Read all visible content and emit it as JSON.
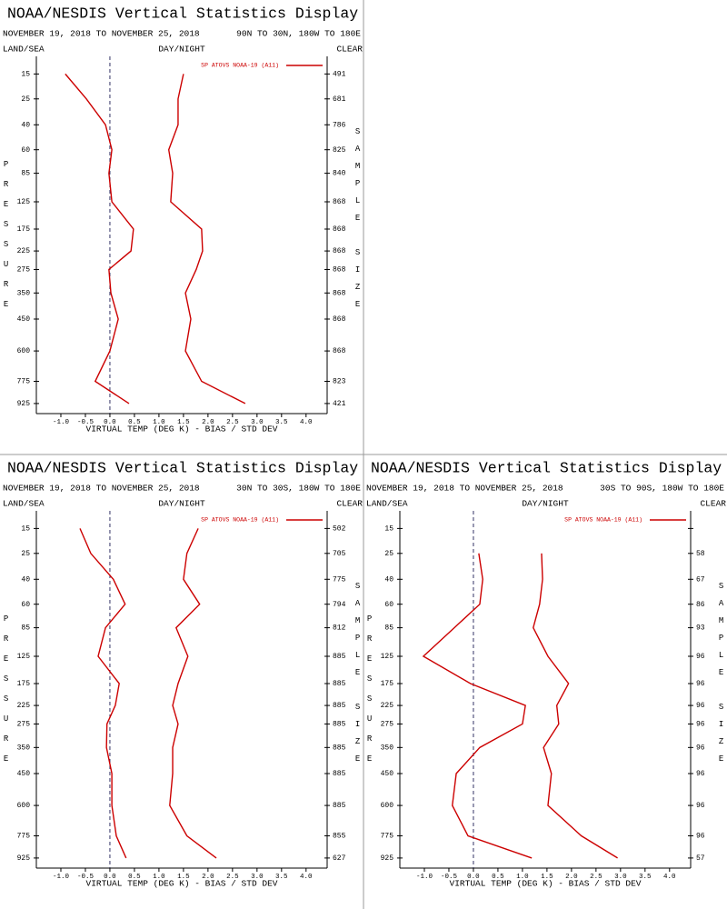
{
  "chart_data": [
    {
      "type": "line",
      "title": "NOAA/NESDIS Vertical Statistics Display",
      "subtitle": "NOVEMBER 19, 2018 TO NOVEMBER 25, 2018",
      "region": "90N TO 30N, 180W TO 180E",
      "land_sea": "LAND/SEA",
      "day_night": "DAY/NIGHT",
      "clear": "CLEAR",
      "y_label": "PRESSURE",
      "y2_label": "SAMPLE SIZE",
      "x_label": "VIRTUAL TEMP (DEG K) - BIAS / STD DEV",
      "xlim": [
        -1.5,
        4.43
      ],
      "xticks": [
        {
          "value": -1.0,
          "label": "-1.0"
        },
        {
          "value": -0.5,
          "label": "-0.5"
        },
        {
          "value": 0,
          "label": "0.0"
        },
        {
          "value": 0.5,
          "label": "0.5"
        },
        {
          "value": 1.0,
          "label": "1.0"
        },
        {
          "value": 1.5,
          "label": "1.5"
        },
        {
          "value": 2.0,
          "label": "2.0"
        },
        {
          "value": 2.5,
          "label": "2.5"
        },
        {
          "value": 3.0,
          "label": "3.0"
        },
        {
          "value": 3.5,
          "label": "3.5"
        },
        {
          "value": 4.0,
          "label": "4.0"
        }
      ],
      "ylim": [
        10,
        1000
      ],
      "y_scale": "fourth-root",
      "yticks": [
        15,
        25,
        40,
        60,
        85,
        125,
        175,
        225,
        275,
        350,
        450,
        600,
        775,
        925
      ],
      "y": [
        15,
        25,
        40,
        60,
        85,
        125,
        175,
        225,
        275,
        350,
        450,
        600,
        775,
        925
      ],
      "series": [
        {
          "name": "SP ATOVS NOAA-19 (A11)",
          "color": "#cc0000",
          "bias": [
            -0.91,
            -0.48,
            -0.09,
            0.04,
            -0.02,
            0.04,
            0.48,
            0.43,
            -0.02,
            0.02,
            0.17,
            0,
            -0.3,
            0.39
          ],
          "std_dev": [
            1.5,
            1.39,
            1.39,
            1.2,
            1.28,
            1.24,
            1.87,
            1.89,
            1.76,
            1.54,
            1.65,
            1.54,
            1.87,
            2.76
          ]
        }
      ],
      "sample_size": [
        491,
        681,
        786,
        825,
        840,
        868,
        868,
        868,
        868,
        868,
        868,
        868,
        823,
        421
      ]
    },
    {
      "type": "line",
      "title": "NOAA/NESDIS Vertical Statistics Display",
      "subtitle": "NOVEMBER 19, 2018 TO NOVEMBER 25, 2018",
      "region": "30N TO 30S, 180W TO 180E",
      "land_sea": "LAND/SEA",
      "day_night": "DAY/NIGHT",
      "clear": "CLEAR",
      "y_label": "PRESSURE",
      "y2_label": "SAMPLE SIZE",
      "x_label": "VIRTUAL TEMP (DEG K) - BIAS / STD DEV",
      "xlim": [
        -1.5,
        4.43
      ],
      "xticks": [
        {
          "value": -1.0,
          "label": "-1.0"
        },
        {
          "value": -0.5,
          "label": "-0.5"
        },
        {
          "value": 0,
          "label": "0.0"
        },
        {
          "value": 0.5,
          "label": "0.5"
        },
        {
          "value": 1.0,
          "label": "1.0"
        },
        {
          "value": 1.5,
          "label": "1.5"
        },
        {
          "value": 2.0,
          "label": "2.0"
        },
        {
          "value": 2.5,
          "label": "2.5"
        },
        {
          "value": 3.0,
          "label": "3.0"
        },
        {
          "value": 3.5,
          "label": "3.5"
        },
        {
          "value": 4.0,
          "label": "4.0"
        }
      ],
      "ylim": [
        10,
        1000
      ],
      "y_scale": "fourth-root",
      "yticks": [
        15,
        25,
        40,
        60,
        85,
        125,
        175,
        225,
        275,
        350,
        450,
        600,
        775,
        925
      ],
      "y": [
        15,
        25,
        40,
        60,
        85,
        125,
        175,
        225,
        275,
        350,
        450,
        600,
        775,
        925
      ],
      "series": [
        {
          "name": "SP ATOVS NOAA-19 (A11)",
          "color": "#cc0000",
          "bias": [
            -0.61,
            -0.39,
            0.07,
            0.31,
            -0.09,
            -0.24,
            0.19,
            0.11,
            -0.06,
            -0.07,
            0.04,
            0.04,
            0.13,
            0.33
          ],
          "std_dev": [
            1.8,
            1.57,
            1.5,
            1.83,
            1.35,
            1.59,
            1.39,
            1.28,
            1.39,
            1.28,
            1.28,
            1.22,
            1.57,
            2.17
          ]
        }
      ],
      "sample_size": [
        502,
        705,
        775,
        794,
        812,
        885,
        885,
        885,
        885,
        885,
        885,
        885,
        855,
        627
      ]
    },
    {
      "type": "line",
      "title": "NOAA/NESDIS Vertical Statistics Display",
      "subtitle": "NOVEMBER 19, 2018 TO NOVEMBER 25, 2018",
      "region": "30S TO 90S, 180W TO 180E",
      "land_sea": "LAND/SEA",
      "day_night": "DAY/NIGHT",
      "clear": "CLEAR",
      "y_label": "PRESSURE",
      "y2_label": "SAMPLE SIZE",
      "x_label": "VIRTUAL TEMP (DEG K) - BIAS / STD DEV",
      "xlim": [
        -1.5,
        4.43
      ],
      "xticks": [
        {
          "value": -1.0,
          "label": "-1.0"
        },
        {
          "value": -0.5,
          "label": "-0.5"
        },
        {
          "value": 0,
          "label": "0.0"
        },
        {
          "value": 0.5,
          "label": "0.5"
        },
        {
          "value": 1.0,
          "label": "1.0"
        },
        {
          "value": 1.5,
          "label": "1.5"
        },
        {
          "value": 2.0,
          "label": "2.0"
        },
        {
          "value": 2.5,
          "label": "2.5"
        },
        {
          "value": 3.0,
          "label": "3.0"
        },
        {
          "value": 3.5,
          "label": "3.5"
        },
        {
          "value": 4.0,
          "label": "4.0"
        }
      ],
      "ylim": [
        10,
        1000
      ],
      "y_scale": "fourth-root",
      "yticks": [
        15,
        25,
        40,
        60,
        85,
        125,
        175,
        225,
        275,
        350,
        450,
        600,
        775,
        925
      ],
      "y": [
        15,
        25,
        40,
        60,
        85,
        125,
        175,
        225,
        275,
        350,
        450,
        600,
        775,
        925
      ],
      "series": [
        {
          "name": "SP ATOVS NOAA-19 (A11)",
          "color": "#cc0000",
          "bias": [
            null,
            0.11,
            0.19,
            0.13,
            -0.39,
            -1.02,
            -0.06,
            1.06,
            1.0,
            0.13,
            -0.35,
            -0.43,
            -0.11,
            1.19
          ],
          "std_dev": [
            null,
            1.39,
            1.41,
            1.35,
            1.22,
            1.52,
            1.94,
            1.7,
            1.74,
            1.43,
            1.59,
            1.52,
            2.2,
            2.94
          ]
        }
      ],
      "sample_size": [
        null,
        58,
        67,
        86,
        93,
        96,
        96,
        96,
        96,
        96,
        96,
        96,
        96,
        57
      ]
    }
  ]
}
